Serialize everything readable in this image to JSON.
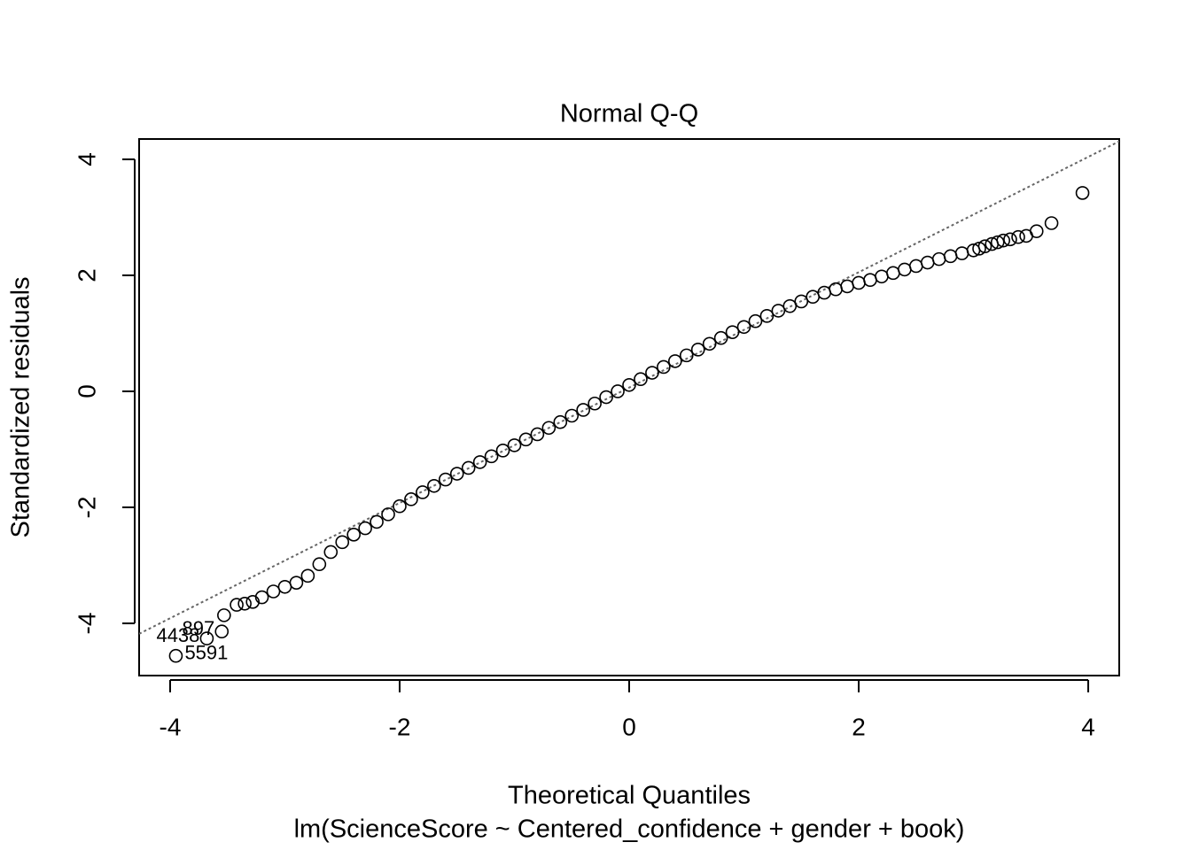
{
  "chart_data": {
    "type": "scatter",
    "title": "Normal Q-Q",
    "x_label": "Theoretical Quantiles",
    "subtitle": "lm(ScienceScore ~ Centered_confidence + gender + book)",
    "y_label": "Standardized residuals",
    "x": [
      -3.95,
      -3.68,
      -3.55,
      -3.53,
      -3.42,
      -3.35,
      -3.28,
      -3.2,
      -3.1,
      -3.0,
      -2.9,
      -2.8,
      -2.7,
      -2.6,
      -2.5,
      -2.4,
      -2.3,
      -2.2,
      -2.1,
      -2.0,
      -1.9,
      -1.8,
      -1.7,
      -1.6,
      -1.5,
      -1.4,
      -1.3,
      -1.2,
      -1.1,
      -1.0,
      -0.9,
      -0.8,
      -0.7,
      -0.6,
      -0.5,
      -0.4,
      -0.3,
      -0.2,
      -0.1,
      0.0,
      0.1,
      0.2,
      0.3,
      0.4,
      0.5,
      0.6,
      0.7,
      0.8,
      0.9,
      1.0,
      1.1,
      1.2,
      1.3,
      1.4,
      1.5,
      1.6,
      1.7,
      1.8,
      1.9,
      2.0,
      2.1,
      2.2,
      2.3,
      2.4,
      2.5,
      2.6,
      2.7,
      2.8,
      2.9,
      3.0,
      3.05,
      3.1,
      3.16,
      3.21,
      3.26,
      3.32,
      3.39,
      3.46,
      3.55,
      3.68,
      3.95
    ],
    "values": [
      -4.56,
      -4.26,
      -4.14,
      -3.86,
      -3.68,
      -3.66,
      -3.63,
      -3.55,
      -3.45,
      -3.37,
      -3.3,
      -3.18,
      -2.98,
      -2.77,
      -2.6,
      -2.47,
      -2.36,
      -2.25,
      -2.12,
      -1.98,
      -1.86,
      -1.74,
      -1.63,
      -1.52,
      -1.42,
      -1.32,
      -1.22,
      -1.12,
      -1.02,
      -0.93,
      -0.83,
      -0.74,
      -0.63,
      -0.53,
      -0.42,
      -0.32,
      -0.21,
      -0.1,
      0.0,
      0.11,
      0.21,
      0.32,
      0.42,
      0.52,
      0.62,
      0.72,
      0.82,
      0.92,
      1.02,
      1.11,
      1.21,
      1.3,
      1.39,
      1.47,
      1.55,
      1.63,
      1.7,
      1.76,
      1.81,
      1.87,
      1.92,
      1.98,
      2.04,
      2.1,
      2.16,
      2.22,
      2.28,
      2.33,
      2.38,
      2.43,
      2.46,
      2.5,
      2.54,
      2.57,
      2.6,
      2.62,
      2.66,
      2.68,
      2.76,
      2.9,
      3.42
    ],
    "color": "#000000",
    "reference_line": {
      "x": [
        -4.27,
        4.27
      ],
      "y": [
        -4.18,
        4.31
      ],
      "color": "#666666"
    },
    "point_labels": [
      {
        "x": -3.95,
        "y": -4.56,
        "text": "5591",
        "side": "right"
      },
      {
        "x": -3.68,
        "y": -4.26,
        "text": "4438",
        "side": "left"
      },
      {
        "x": -3.55,
        "y": -4.14,
        "text": "897",
        "side": "left"
      }
    ],
    "xlim": [
      -4.27,
      4.27
    ],
    "ylim": [
      -4.9,
      4.35
    ],
    "xticks": [
      -4,
      -2,
      0,
      2,
      4
    ],
    "yticks": [
      -4,
      -2,
      0,
      2,
      4
    ],
    "grid": false
  }
}
